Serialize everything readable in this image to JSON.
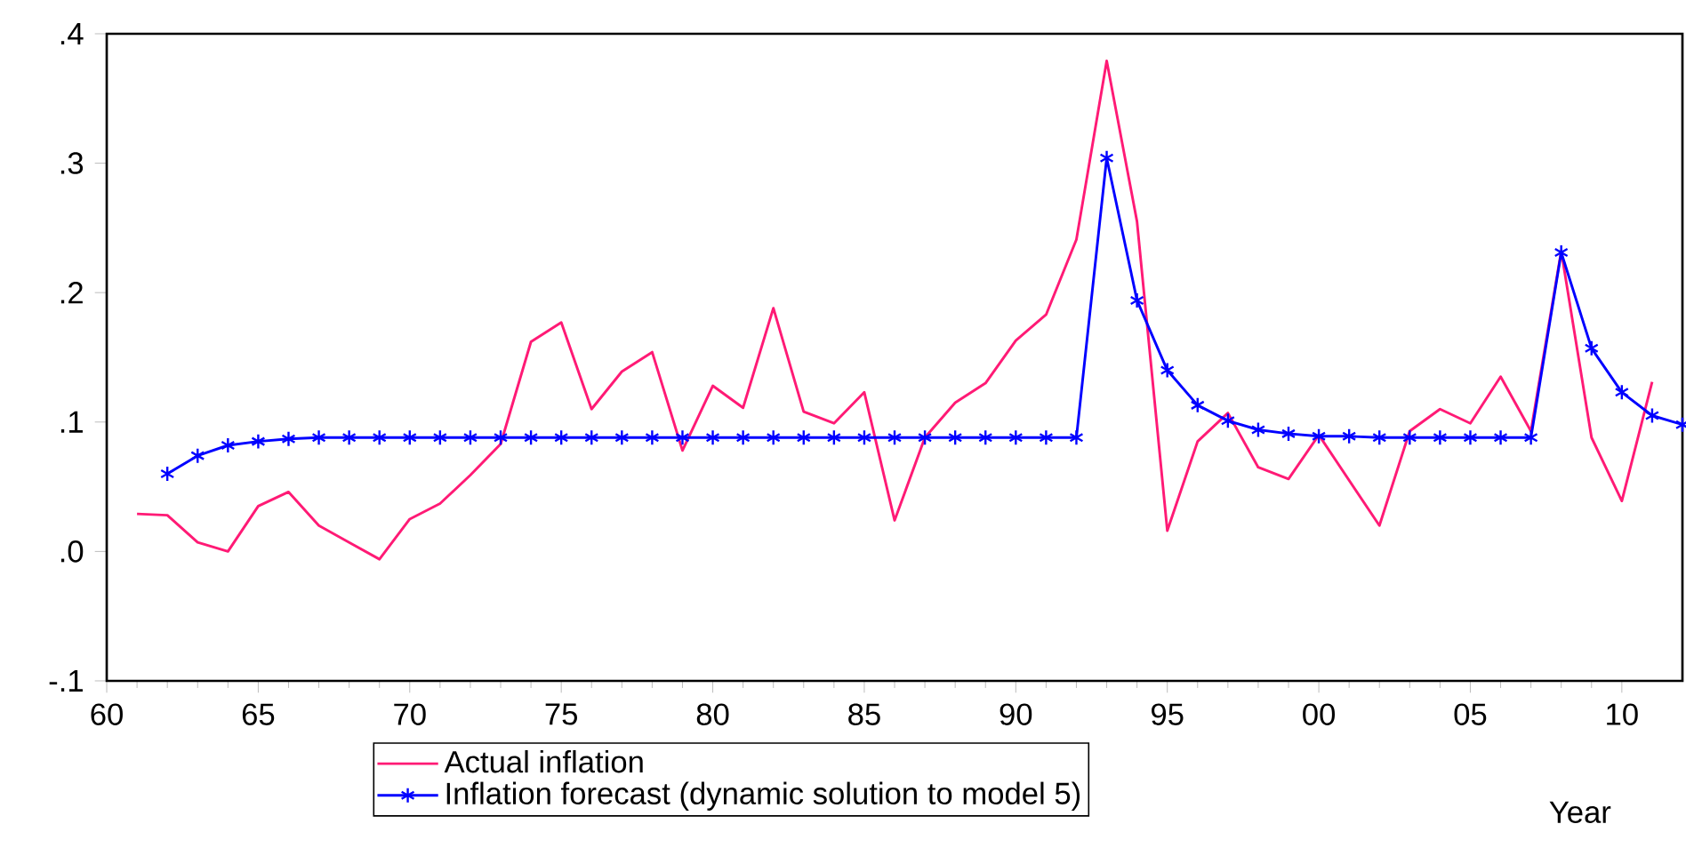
{
  "chart_data": {
    "type": "line",
    "xlabel": "Year",
    "x": [
      1961,
      1962,
      1963,
      1964,
      1965,
      1966,
      1967,
      1968,
      1969,
      1970,
      1971,
      1972,
      1973,
      1974,
      1975,
      1976,
      1977,
      1978,
      1979,
      1980,
      1981,
      1982,
      1983,
      1984,
      1985,
      1986,
      1987,
      1988,
      1989,
      1990,
      1991,
      1992,
      1993,
      1994,
      1995,
      1996,
      1997,
      1998,
      1999,
      2000,
      2001,
      2002,
      2003,
      2004,
      2005,
      2006,
      2007,
      2008,
      2009,
      2010,
      2011,
      2012
    ],
    "series": [
      {
        "name": "Actual inflation",
        "color": "#ff1a75",
        "marker": "none",
        "values": [
          0.029,
          0.028,
          0.007,
          0.0,
          0.035,
          0.046,
          0.02,
          0.007,
          -0.006,
          0.025,
          0.037,
          0.059,
          0.083,
          0.162,
          0.177,
          0.11,
          0.139,
          0.154,
          0.078,
          0.128,
          0.111,
          0.188,
          0.108,
          0.099,
          0.123,
          0.024,
          0.088,
          0.115,
          0.13,
          0.163,
          0.183,
          0.241,
          0.379,
          0.255,
          0.016,
          0.085,
          0.107,
          0.065,
          0.056,
          0.09,
          0.055,
          0.02,
          0.093,
          0.11,
          0.099,
          0.135,
          0.093,
          0.232,
          0.088,
          0.039,
          0.131,
          null
        ]
      },
      {
        "name": "Inflation forecast (dynamic solution to model 5)",
        "color": "#0000ff",
        "marker": "cross",
        "values": [
          null,
          0.06,
          0.074,
          0.082,
          0.085,
          0.087,
          0.088,
          0.088,
          0.088,
          0.088,
          0.088,
          0.088,
          0.088,
          0.088,
          0.088,
          0.088,
          0.088,
          0.088,
          0.088,
          0.088,
          0.088,
          0.088,
          0.088,
          0.088,
          0.088,
          0.088,
          0.088,
          0.088,
          0.088,
          0.088,
          0.088,
          0.088,
          0.304,
          0.194,
          0.14,
          0.113,
          0.101,
          0.094,
          0.091,
          0.089,
          0.089,
          0.088,
          0.088,
          0.088,
          0.088,
          0.088,
          0.088,
          0.231,
          0.157,
          0.123,
          0.105,
          0.098
        ]
      }
    ],
    "xlim": [
      1960,
      2012
    ],
    "xticks": [
      {
        "value": 1960,
        "label": "60"
      },
      {
        "value": 1965,
        "label": "65"
      },
      {
        "value": 1970,
        "label": "70"
      },
      {
        "value": 1975,
        "label": "75"
      },
      {
        "value": 1980,
        "label": "80"
      },
      {
        "value": 1985,
        "label": "85"
      },
      {
        "value": 1990,
        "label": "90"
      },
      {
        "value": 1995,
        "label": "95"
      },
      {
        "value": 2000,
        "label": "00"
      },
      {
        "value": 2005,
        "label": "05"
      },
      {
        "value": 2010,
        "label": "10"
      }
    ],
    "ylim": [
      -0.1,
      0.4
    ],
    "yticks": [
      {
        "value": -0.1,
        "label": "-.1"
      },
      {
        "value": 0.0,
        "label": ".0"
      },
      {
        "value": 0.1,
        "label": ".1"
      },
      {
        "value": 0.2,
        "label": ".2"
      },
      {
        "value": 0.3,
        "label": ".3"
      },
      {
        "value": 0.4,
        "label": ".4"
      }
    ],
    "legend": "bottom",
    "grid": false
  }
}
